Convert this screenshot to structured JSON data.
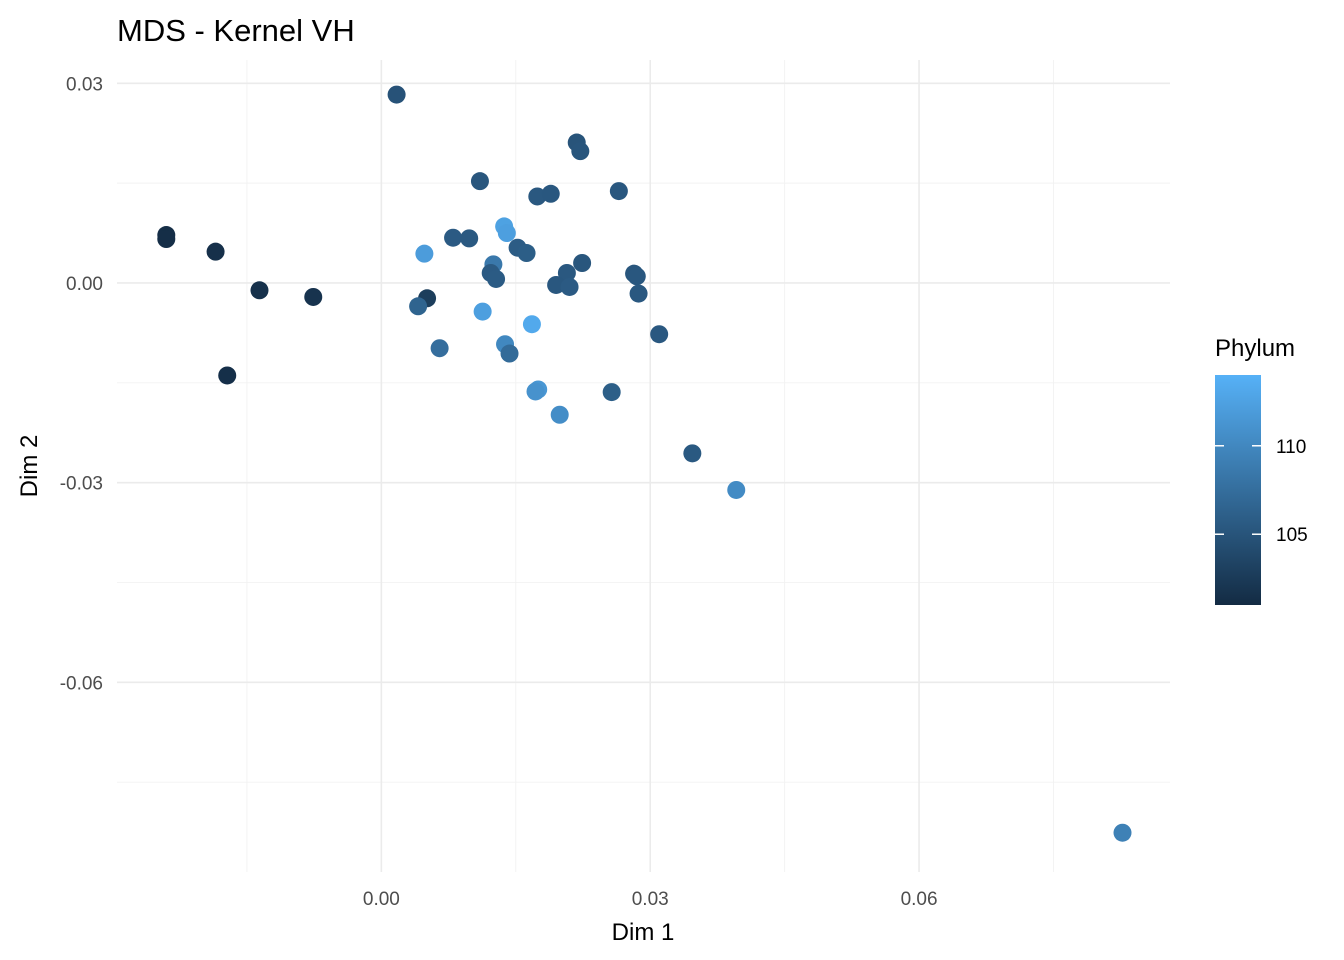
{
  "chart_data": {
    "type": "scatter",
    "title": "MDS - Kernel VH",
    "xlabel": "Dim 1",
    "ylabel": "Dim 2",
    "xlim": [
      -0.0295,
      0.088
    ],
    "ylim": [
      -0.0885,
      0.0335
    ],
    "x_ticks": [
      0.0,
      0.03,
      0.06
    ],
    "x_tick_labels": [
      "0.00",
      "0.03",
      "0.06"
    ],
    "y_ticks": [
      0.03,
      0.0,
      -0.03,
      -0.06
    ],
    "y_tick_labels": [
      "0.03",
      "0.00",
      "-0.03",
      "-0.06"
    ],
    "grid": true,
    "legend": {
      "title": "Phylum",
      "position": "right",
      "min": 101,
      "max": 114,
      "breaks": [
        110,
        105
      ],
      "break_labels": [
        "110",
        "105"
      ],
      "low_color": "#132b43",
      "high_color": "#56b1f7"
    },
    "points": [
      {
        "x": 0.0017,
        "y": 0.0283,
        "phylum": 104.8
      },
      {
        "x": -0.024,
        "y": 0.0072,
        "phylum": 101.3
      },
      {
        "x": -0.024,
        "y": 0.0066,
        "phylum": 101.3
      },
      {
        "x": -0.0185,
        "y": 0.0047,
        "phylum": 101.5
      },
      {
        "x": -0.0136,
        "y": -0.0011,
        "phylum": 101.6
      },
      {
        "x": -0.0076,
        "y": -0.0021,
        "phylum": 101.8
      },
      {
        "x": -0.0172,
        "y": -0.0139,
        "phylum": 101.4
      },
      {
        "x": 0.011,
        "y": 0.0153,
        "phylum": 105.2
      },
      {
        "x": 0.0218,
        "y": 0.0211,
        "phylum": 105.0
      },
      {
        "x": 0.0222,
        "y": 0.0198,
        "phylum": 105.1
      },
      {
        "x": 0.0265,
        "y": 0.0138,
        "phylum": 105.3
      },
      {
        "x": 0.0174,
        "y": 0.013,
        "phylum": 105.4
      },
      {
        "x": 0.0189,
        "y": 0.0134,
        "phylum": 105.3
      },
      {
        "x": 0.008,
        "y": 0.0068,
        "phylum": 105.6
      },
      {
        "x": 0.0098,
        "y": 0.0067,
        "phylum": 105.5
      },
      {
        "x": 0.0137,
        "y": 0.0085,
        "phylum": 112.5
      },
      {
        "x": 0.014,
        "y": 0.0075,
        "phylum": 112.3
      },
      {
        "x": 0.0048,
        "y": 0.0044,
        "phylum": 112.0
      },
      {
        "x": 0.0152,
        "y": 0.0053,
        "phylum": 105.8
      },
      {
        "x": 0.0162,
        "y": 0.0045,
        "phylum": 105.9
      },
      {
        "x": 0.0125,
        "y": 0.0028,
        "phylum": 108.5
      },
      {
        "x": 0.0122,
        "y": 0.0015,
        "phylum": 105.6
      },
      {
        "x": 0.0128,
        "y": 0.0006,
        "phylum": 105.7
      },
      {
        "x": 0.0224,
        "y": 0.003,
        "phylum": 105.2
      },
      {
        "x": 0.0207,
        "y": 0.0015,
        "phylum": 105.4
      },
      {
        "x": 0.0195,
        "y": -0.0003,
        "phylum": 105.3
      },
      {
        "x": 0.021,
        "y": -0.0006,
        "phylum": 105.6
      },
      {
        "x": 0.0282,
        "y": 0.0014,
        "phylum": 105.2
      },
      {
        "x": 0.0285,
        "y": 0.001,
        "phylum": 105.3
      },
      {
        "x": 0.0287,
        "y": -0.0016,
        "phylum": 105.4
      },
      {
        "x": 0.0051,
        "y": -0.0023,
        "phylum": 102.8
      },
      {
        "x": 0.0041,
        "y": -0.0035,
        "phylum": 106.5
      },
      {
        "x": 0.0113,
        "y": -0.0043,
        "phylum": 112.3
      },
      {
        "x": 0.0168,
        "y": -0.0062,
        "phylum": 113.2
      },
      {
        "x": 0.031,
        "y": -0.0077,
        "phylum": 105.4
      },
      {
        "x": 0.0065,
        "y": -0.0098,
        "phylum": 107.5
      },
      {
        "x": 0.0138,
        "y": -0.0092,
        "phylum": 110.0
      },
      {
        "x": 0.0143,
        "y": -0.0106,
        "phylum": 107.2
      },
      {
        "x": 0.0175,
        "y": -0.016,
        "phylum": 111.5
      },
      {
        "x": 0.0172,
        "y": -0.0163,
        "phylum": 111.0
      },
      {
        "x": 0.0257,
        "y": -0.0164,
        "phylum": 106.0
      },
      {
        "x": 0.0199,
        "y": -0.0198,
        "phylum": 110.5
      },
      {
        "x": 0.0347,
        "y": -0.0256,
        "phylum": 105.5
      },
      {
        "x": 0.0396,
        "y": -0.0311,
        "phylum": 110.3
      },
      {
        "x": 0.0827,
        "y": -0.0826,
        "phylum": 109.3
      }
    ]
  }
}
